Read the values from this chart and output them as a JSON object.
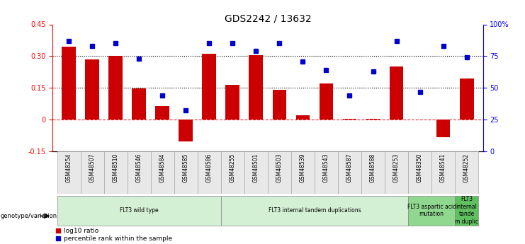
{
  "title": "GDS2242 / 13632",
  "samples": [
    "GSM48254",
    "GSM48507",
    "GSM48510",
    "GSM48546",
    "GSM48584",
    "GSM48585",
    "GSM48586",
    "GSM48255",
    "GSM48501",
    "GSM48503",
    "GSM48539",
    "GSM48543",
    "GSM48587",
    "GSM48588",
    "GSM48253",
    "GSM48350",
    "GSM48541",
    "GSM48252"
  ],
  "log10_ratio": [
    0.345,
    0.285,
    0.3,
    0.148,
    0.065,
    -0.105,
    0.31,
    0.165,
    0.305,
    0.14,
    0.02,
    0.17,
    0.005,
    0.002,
    0.25,
    0.001,
    -0.085,
    0.195
  ],
  "percentile_rank": [
    87,
    83,
    85,
    73,
    44,
    32,
    85,
    85,
    79,
    85,
    71,
    64,
    44,
    63,
    87,
    47,
    83,
    74
  ],
  "groups": [
    {
      "label": "FLT3 wild type",
      "start": 0,
      "end": 7,
      "color": "#d4f0d4"
    },
    {
      "label": "FLT3 internal tandem duplications",
      "start": 7,
      "end": 15,
      "color": "#d4f0d4"
    },
    {
      "label": "FLT3 aspartic acid\nmutation",
      "start": 15,
      "end": 17,
      "color": "#90d890"
    },
    {
      "label": "FLT3\ninternal\ntande\nm duplic",
      "start": 17,
      "end": 18,
      "color": "#60c060"
    }
  ],
  "bar_color": "#cc0000",
  "dot_color": "#0000cc",
  "ylim_left": [
    -0.15,
    0.45
  ],
  "ylim_right": [
    0,
    100
  ],
  "yticks_left": [
    -0.15,
    0.0,
    0.15,
    0.3,
    0.45
  ],
  "ytick_labels_left": [
    "-0.15",
    "0",
    "0.15",
    "0.30",
    "0.45"
  ],
  "yticks_right": [
    0,
    25,
    50,
    75,
    100
  ],
  "ytick_labels_right": [
    "0",
    "25",
    "50",
    "75",
    "100%"
  ],
  "hlines": [
    0.15,
    0.3
  ],
  "legend_label_bar": "log10 ratio",
  "legend_label_dot": "percentile rank within the sample",
  "genotype_label": "genotype/variation"
}
